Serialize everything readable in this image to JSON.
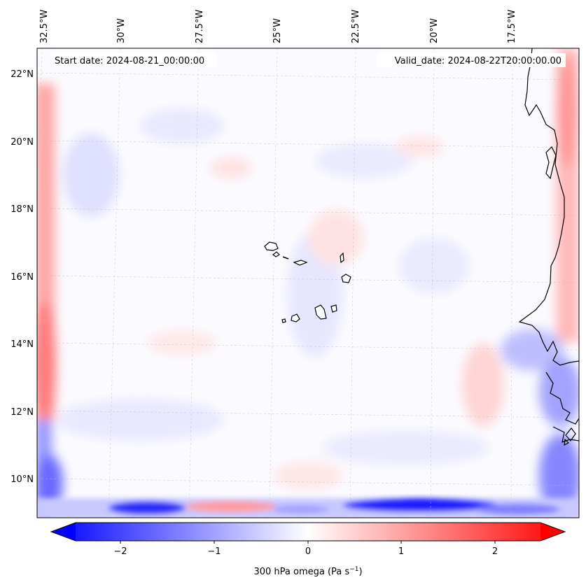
{
  "map": {
    "start_date_text": "Start date: 2024-08-21_00:00:00",
    "valid_date_text": "Valid_date: 2024-08-22T20:00:00.00",
    "lon_labels": [
      "32.5°W",
      "30°W",
      "27.5°W",
      "25°W",
      "22.5°W",
      "20°W",
      "17.5°W"
    ],
    "lat_labels": [
      "22°N",
      "20°N",
      "18°N",
      "16°N",
      "14°N",
      "12°N",
      "10°N"
    ]
  },
  "colorbar": {
    "ticks": [
      "−2",
      "−1",
      "0",
      "1",
      "2"
    ],
    "label": "300 hPa omega (Pa s",
    "label_exp": "−1",
    "label_close": ")",
    "range": [
      -2.7,
      2.7
    ]
  },
  "colors": {
    "negative": "#0000ff",
    "neutral": "#ffffff",
    "positive": "#ff0000",
    "coast": "#000000"
  }
}
